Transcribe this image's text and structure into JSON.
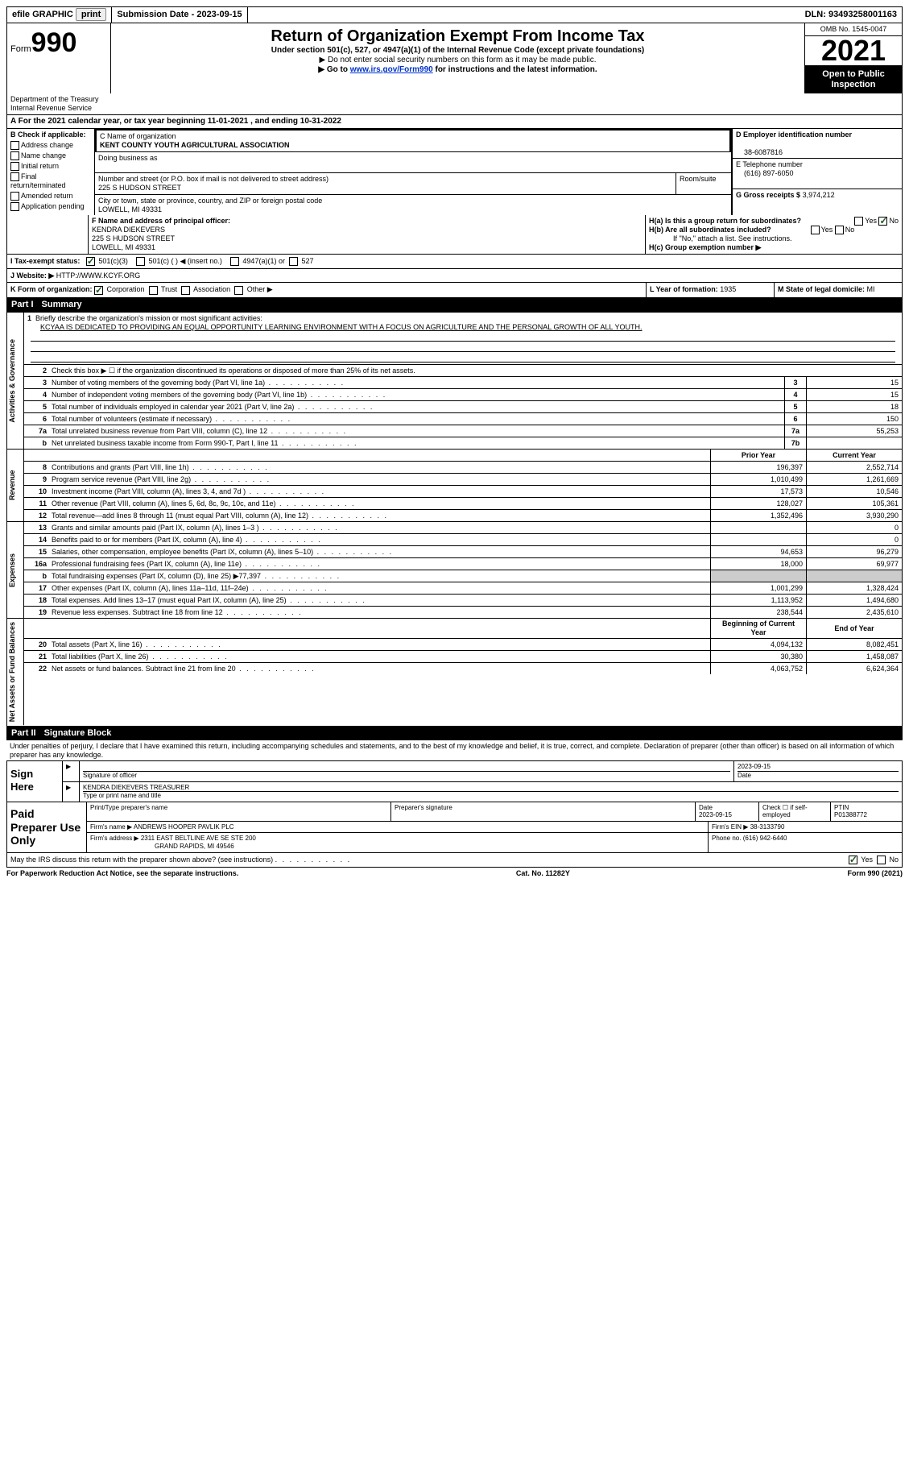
{
  "topbar": {
    "efile": "efile GRAPHIC",
    "print": "print",
    "submission": "Submission Date - 2023-09-15",
    "dln": "DLN: 93493258001163"
  },
  "header": {
    "form_label": "Form",
    "form_num": "990",
    "title": "Return of Organization Exempt From Income Tax",
    "subtitle": "Under section 501(c), 527, or 4947(a)(1) of the Internal Revenue Code (except private foundations)",
    "warn1": "▶ Do not enter social security numbers on this form as it may be made public.",
    "warn2_pre": "▶ Go to ",
    "warn2_link": "www.irs.gov/Form990",
    "warn2_post": " for instructions and the latest information.",
    "omb": "OMB No. 1545-0047",
    "year": "2021",
    "open": "Open to Public Inspection",
    "dept": "Department of the Treasury",
    "irs": "Internal Revenue Service"
  },
  "periodA": "A For the 2021 calendar year, or tax year beginning 11-01-2021   , and ending 10-31-2022",
  "boxB": {
    "label": "B Check if applicable:",
    "items": [
      "Address change",
      "Name change",
      "Initial return",
      "Final return/terminated",
      "Amended return",
      "Application pending"
    ]
  },
  "boxC": {
    "name_label": "C Name of organization",
    "name": "KENT COUNTY YOUTH AGRICULTURAL ASSOCIATION",
    "dba_label": "Doing business as",
    "street_label": "Number and street (or P.O. box if mail is not delivered to street address)",
    "room_label": "Room/suite",
    "street": "225 S HUDSON STREET",
    "city_label": "City or town, state or province, country, and ZIP or foreign postal code",
    "city": "LOWELL, MI  49331"
  },
  "boxD": {
    "ein_label": "D Employer identification number",
    "ein": "38-6087816",
    "tel_label": "E Telephone number",
    "tel": "(616) 897-6050",
    "gross_label": "G Gross receipts $",
    "gross": "3,974,212"
  },
  "boxF": {
    "label": "F  Name and address of principal officer:",
    "name": "KENDRA DIEKEVERS",
    "street": "225 S HUDSON STREET",
    "city": "LOWELL, MI  49331"
  },
  "boxH": {
    "ha": "H(a)  Is this a group return for subordinates?",
    "hb": "H(b)  Are all subordinates included?",
    "hb_note": "If \"No,\" attach a list. See instructions.",
    "hc": "H(c)  Group exemption number ▶",
    "yes": "Yes",
    "no": "No"
  },
  "boxI": {
    "label": "I    Tax-exempt status:",
    "opt1": "501(c)(3)",
    "opt2": "501(c) (  ) ◀ (insert no.)",
    "opt3": "4947(a)(1) or",
    "opt4": "527"
  },
  "boxJ": {
    "label": "J   Website: ▶",
    "url": "HTTP://WWW.KCYF.ORG"
  },
  "boxK": {
    "label": "K Form of organization:",
    "corp": "Corporation",
    "trust": "Trust",
    "assoc": "Association",
    "other": "Other ▶"
  },
  "boxL": {
    "label": "L Year of formation:",
    "val": "1935"
  },
  "boxM": {
    "label": "M State of legal domicile:",
    "val": "MI"
  },
  "parts": {
    "p1": "Part I",
    "p1_title": "Summary",
    "p2": "Part II",
    "p2_title": "Signature Block"
  },
  "summary": {
    "line1_label": "Briefly describe the organization's mission or most significant activities:",
    "line1_text": "KCYAA IS DEDICATED TO PROVIDING AN EQUAL OPPORTUNITY LEARNING ENVIRONMENT WITH A FOCUS ON AGRICULTURE AND THE PERSONAL GROWTH OF ALL YOUTH.",
    "line2": "Check this box ▶ ☐ if the organization discontinued its operations or disposed of more than 25% of its net assets.",
    "side_activities": "Activities & Governance",
    "side_revenue": "Revenue",
    "side_expenses": "Expenses",
    "side_netassets": "Net Assets or Fund Balances",
    "prior_year": "Prior Year",
    "current_year": "Current Year",
    "begin_year": "Beginning of Current Year",
    "end_year": "End of Year",
    "rows_gov": [
      {
        "n": "3",
        "d": "Number of voting members of the governing body (Part VI, line 1a)",
        "b": "3",
        "v": "15"
      },
      {
        "n": "4",
        "d": "Number of independent voting members of the governing body (Part VI, line 1b)",
        "b": "4",
        "v": "15"
      },
      {
        "n": "5",
        "d": "Total number of individuals employed in calendar year 2021 (Part V, line 2a)",
        "b": "5",
        "v": "18"
      },
      {
        "n": "6",
        "d": "Total number of volunteers (estimate if necessary)",
        "b": "6",
        "v": "150"
      },
      {
        "n": "7a",
        "d": "Total unrelated business revenue from Part VIII, column (C), line 12",
        "b": "7a",
        "v": "55,253"
      },
      {
        "n": "b",
        "d": "Net unrelated business taxable income from Form 990-T, Part I, line 11",
        "b": "7b",
        "v": ""
      }
    ],
    "rows_rev": [
      {
        "n": "8",
        "d": "Contributions and grants (Part VIII, line 1h)",
        "p": "196,397",
        "c": "2,552,714"
      },
      {
        "n": "9",
        "d": "Program service revenue (Part VIII, line 2g)",
        "p": "1,010,499",
        "c": "1,261,669"
      },
      {
        "n": "10",
        "d": "Investment income (Part VIII, column (A), lines 3, 4, and 7d )",
        "p": "17,573",
        "c": "10,546"
      },
      {
        "n": "11",
        "d": "Other revenue (Part VIII, column (A), lines 5, 6d, 8c, 9c, 10c, and 11e)",
        "p": "128,027",
        "c": "105,361"
      },
      {
        "n": "12",
        "d": "Total revenue—add lines 8 through 11 (must equal Part VIII, column (A), line 12)",
        "p": "1,352,496",
        "c": "3,930,290"
      }
    ],
    "rows_exp": [
      {
        "n": "13",
        "d": "Grants and similar amounts paid (Part IX, column (A), lines 1–3 )",
        "p": "",
        "c": "0"
      },
      {
        "n": "14",
        "d": "Benefits paid to or for members (Part IX, column (A), line 4)",
        "p": "",
        "c": "0"
      },
      {
        "n": "15",
        "d": "Salaries, other compensation, employee benefits (Part IX, column (A), lines 5–10)",
        "p": "94,653",
        "c": "96,279"
      },
      {
        "n": "16a",
        "d": "Professional fundraising fees (Part IX, column (A), line 11e)",
        "p": "18,000",
        "c": "69,977"
      },
      {
        "n": "b",
        "d": "Total fundraising expenses (Part IX, column (D), line 25) ▶77,397",
        "p": "grey",
        "c": "grey"
      },
      {
        "n": "17",
        "d": "Other expenses (Part IX, column (A), lines 11a–11d, 11f–24e)",
        "p": "1,001,299",
        "c": "1,328,424"
      },
      {
        "n": "18",
        "d": "Total expenses. Add lines 13–17 (must equal Part IX, column (A), line 25)",
        "p": "1,113,952",
        "c": "1,494,680"
      },
      {
        "n": "19",
        "d": "Revenue less expenses. Subtract line 18 from line 12",
        "p": "238,544",
        "c": "2,435,610"
      }
    ],
    "rows_net": [
      {
        "n": "20",
        "d": "Total assets (Part X, line 16)",
        "p": "4,094,132",
        "c": "8,082,451"
      },
      {
        "n": "21",
        "d": "Total liabilities (Part X, line 26)",
        "p": "30,380",
        "c": "1,458,087"
      },
      {
        "n": "22",
        "d": "Net assets or fund balances. Subtract line 21 from line 20",
        "p": "4,063,752",
        "c": "6,624,364"
      }
    ]
  },
  "sig": {
    "penalties": "Under penalties of perjury, I declare that I have examined this return, including accompanying schedules and statements, and to the best of my knowledge and belief, it is true, correct, and complete. Declaration of preparer (other than officer) is based on all information of which preparer has any knowledge.",
    "sign_here": "Sign Here",
    "sig_officer": "Signature of officer",
    "sig_date": "2023-09-15",
    "date_label": "Date",
    "name_title": "KENDRA DIEKEVERS  TREASURER",
    "type_name": "Type or print name and title",
    "paid_prep": "Paid Preparer Use Only",
    "print_name_label": "Print/Type preparer's name",
    "prep_sig_label": "Preparer's signature",
    "date2_label": "Date",
    "date2": "2023-09-15",
    "check_se": "Check ☐ if self-employed",
    "ptin_label": "PTIN",
    "ptin": "P01388772",
    "firm_name_label": "Firm's name    ▶",
    "firm_name": "ANDREWS HOOPER PAVLIK PLC",
    "firm_ein_label": "Firm's EIN ▶",
    "firm_ein": "38-3133790",
    "firm_addr_label": "Firm's address ▶",
    "firm_addr1": "2311 EAST BELTLINE AVE SE STE 200",
    "firm_addr2": "GRAND RAPIDS, MI  49546",
    "phone_label": "Phone no.",
    "phone": "(616) 942-6440",
    "may_irs": "May the IRS discuss this return with the preparer shown above? (see instructions)"
  },
  "footer": {
    "pra": "For Paperwork Reduction Act Notice, see the separate instructions.",
    "cat": "Cat. No. 11282Y",
    "form": "Form 990 (2021)"
  }
}
